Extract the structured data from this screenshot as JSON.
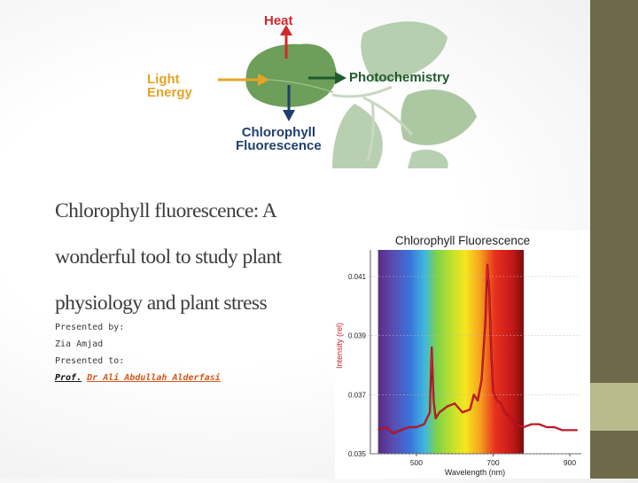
{
  "diagram": {
    "heat_label": "Heat",
    "light_label_line1": "Light",
    "light_label_line2": "Energy",
    "photochemistry_label": "Photochemistry",
    "fluorescence_label_line1": "Chlorophyll",
    "fluorescence_label_line2": "Fluorescence",
    "colors": {
      "heat": "#cf2a2a",
      "light": "#e3a427",
      "photochemistry": "#1f5a2c",
      "fluorescence": "#1f3f6d",
      "leaf": "#6d9e5a"
    }
  },
  "slide": {
    "title_line1": "Chlorophyll fluorescence: A",
    "title_line2": "wonderful tool to study plant",
    "title_line3": "physiology and plant stress",
    "presented_by_label": "Presented by:",
    "presenter_name": "Zia Amjad",
    "presented_to_label": "Presented to:",
    "professor_prefix": "Prof.",
    "professor_name": "Dr Ali Abdullah Alderfasi"
  },
  "theme": {
    "sidebar_color": "#6e6a49",
    "sidebar_accent_color": "#b9b98e"
  },
  "chart_data": {
    "type": "line",
    "title": "Chlorophyll Fluorescence",
    "xlabel": "Wavelength (nm)",
    "ylabel": "Intensity (rel)",
    "x_ticks": [
      500,
      700,
      900
    ],
    "y_ticks": [
      0.035,
      0.037,
      0.039,
      0.041
    ],
    "y_tick_labels": [
      "0.035",
      "0.037",
      "0.039",
      "0.041"
    ],
    "xlim": [
      380,
      930
    ],
    "ylim": [
      0.035,
      0.0419
    ],
    "line_color": "#e8142a",
    "series": [
      {
        "x": [
          400,
          420,
          440,
          460,
          480,
          500,
          520,
          535,
          540,
          545,
          550,
          560,
          580,
          600,
          620,
          640,
          650,
          660,
          670,
          680,
          685,
          690,
          695,
          700,
          710,
          720,
          730,
          740,
          750,
          760,
          780,
          800,
          820,
          840,
          860,
          880,
          900,
          920
        ],
        "y": [
          0.0358,
          0.0359,
          0.0357,
          0.0358,
          0.0359,
          0.0359,
          0.036,
          0.0364,
          0.0386,
          0.0368,
          0.0362,
          0.0364,
          0.0366,
          0.0367,
          0.0364,
          0.0365,
          0.037,
          0.0368,
          0.0375,
          0.0395,
          0.0414,
          0.0405,
          0.0385,
          0.0371,
          0.0368,
          0.0367,
          0.0364,
          0.0363,
          0.0361,
          0.036,
          0.0359,
          0.036,
          0.036,
          0.0359,
          0.0359,
          0.0358,
          0.0358,
          0.0358
        ]
      }
    ]
  }
}
